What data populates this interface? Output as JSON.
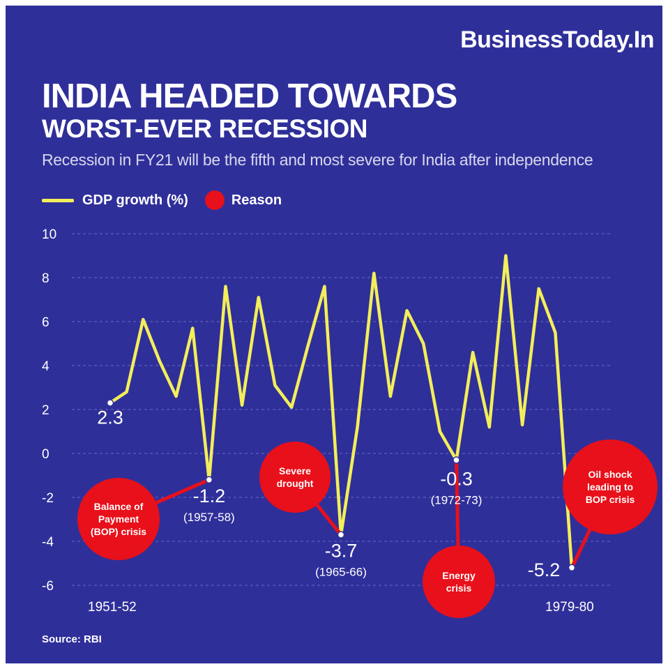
{
  "brand": "BusinessToday.In",
  "title_line1": "INDIA HEADED TOWARDS",
  "title_line2": "WORST-EVER RECESSION",
  "subtitle": "Recession in FY21 will be the fifth and most severe for India after independence",
  "legend": {
    "line_label": "GDP growth (%)",
    "dot_label": "Reason"
  },
  "source": "Source: RBI",
  "colors": {
    "background": "#2f2f9a",
    "line": "#f3ee5a",
    "reason": "#e8101a"
  },
  "chart_data": {
    "type": "line",
    "ylim": [
      -6,
      10
    ],
    "yticks": [
      "10",
      "8",
      "6",
      "4",
      "2",
      "0",
      "-2",
      "-4",
      "-6"
    ],
    "x_tick_labels": [
      "1951-52",
      "1979-80"
    ],
    "grid": true,
    "series": [
      {
        "name": "GDP growth (%)",
        "values": [
          2.3,
          2.8,
          6.1,
          4.2,
          2.6,
          5.7,
          -1.2,
          7.6,
          2.2,
          7.1,
          3.1,
          2.1,
          4.9,
          7.6,
          -3.7,
          1.2,
          8.2,
          2.6,
          6.5,
          5.0,
          1.0,
          -0.3,
          4.6,
          1.2,
          9.0,
          1.3,
          7.5,
          5.5,
          -5.2
        ]
      }
    ],
    "annotations": [
      {
        "index": 0,
        "value_label": "2.3",
        "period": ""
      },
      {
        "index": 6,
        "value_label": "-1.2",
        "period": "(1957-58)"
      },
      {
        "index": 14,
        "value_label": "-3.7",
        "period": "(1965-66)"
      },
      {
        "index": 21,
        "value_label": "-0.3",
        "period": "(1972-73)"
      },
      {
        "index": 28,
        "value_label": "-5.2",
        "period": ""
      }
    ],
    "reasons": [
      {
        "lines": [
          "Balance of",
          "Payment",
          "(BOP) crisis"
        ]
      },
      {
        "lines": [
          "Severe",
          "drought"
        ]
      },
      {
        "lines": [
          "Energy",
          "crisis"
        ]
      },
      {
        "lines": [
          "Oil shock",
          "leading to",
          "BOP crisis"
        ]
      }
    ]
  }
}
